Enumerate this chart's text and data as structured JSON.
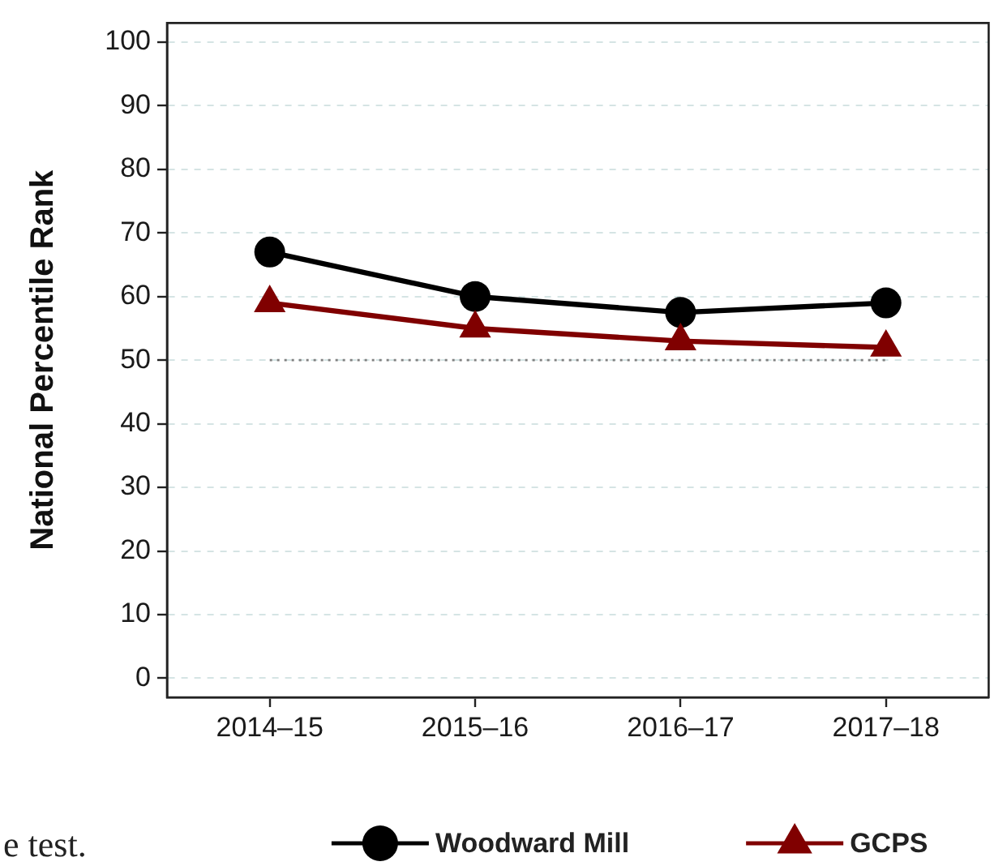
{
  "chart_data": {
    "type": "line",
    "categories": [
      "2014–15",
      "2015–16",
      "2016–17",
      "2017–18"
    ],
    "ylabel": "National Percentile Rank",
    "ylim": [
      -3,
      103
    ],
    "yticks": [
      0,
      10,
      20,
      30,
      40,
      50,
      60,
      70,
      80,
      90,
      100
    ],
    "series": [
      {
        "name": "Woodward Mill",
        "color": "#000000",
        "marker": "circle",
        "values": [
          67,
          60,
          57.5,
          59
        ]
      },
      {
        "name": "GCPS",
        "color": "#800000",
        "marker": "triangle",
        "values": [
          59,
          55,
          53,
          52
        ]
      }
    ],
    "ref_lines": [
      {
        "axis": "y",
        "value": 50,
        "color": "#808080",
        "line_style": "dotted"
      }
    ],
    "grid": "y",
    "legend": "bottom",
    "annotations": [
      "e test."
    ]
  }
}
